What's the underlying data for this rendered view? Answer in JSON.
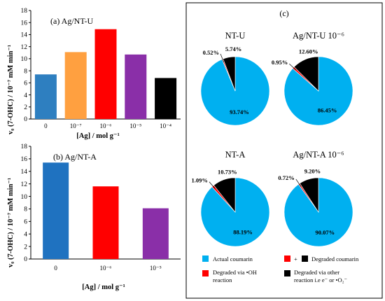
{
  "chart_data": [
    {
      "type": "bar",
      "panel_label": "(a) Ag/NT-U",
      "categories": [
        "0",
        "10⁻⁷",
        "10⁻⁶",
        "10⁻⁵",
        "10⁻⁴"
      ],
      "values": [
        7.4,
        11.1,
        14.9,
        10.7,
        6.8
      ],
      "colors": [
        "#2e7fc0",
        "#ffa040",
        "#ff0000",
        "#8a2fa8",
        "#000000"
      ],
      "xlabel": "[Ag] / mol g⁻¹",
      "ylabel": "v₀ (7-OHC) / 10⁻⁷ mM min⁻¹",
      "ylim": [
        0,
        18
      ],
      "yticks": [
        0,
        2,
        4,
        6,
        8,
        10,
        12,
        14,
        16,
        18
      ],
      "grid": false
    },
    {
      "type": "bar",
      "panel_label": "(b) Ag/NT-A",
      "categories": [
        "0",
        "10⁻⁶",
        "10⁻⁵"
      ],
      "values": [
        15.4,
        11.6,
        8.1
      ],
      "colors": [
        "#1f72c0",
        "#ff0000",
        "#8a2fa8"
      ],
      "xlabel": "[Ag] / mol g⁻¹",
      "ylabel": "v₀ (7-OHC) / 10⁻⁷ mM min⁻¹",
      "ylim": [
        0,
        18
      ],
      "yticks": [
        0,
        2,
        4,
        6,
        8,
        10,
        12,
        14,
        16,
        18
      ],
      "grid": false
    },
    {
      "type": "pie",
      "panel_label": "(c)",
      "slice_labels": [
        "Actual coumarin",
        "Degraded via •OH reaction",
        "Degraded via other reaction i.e e⁻ or •O₂⁻"
      ],
      "slice_colors": [
        "#00b0f0",
        "#ff0000",
        "#000000"
      ],
      "pies": [
        {
          "title": "NT-U",
          "values": [
            93.74,
            0.52,
            5.74
          ],
          "labels": [
            "93.74%",
            "0.52%",
            "5.74%"
          ]
        },
        {
          "title": "Ag/NT-U 10⁻⁶",
          "values": [
            86.45,
            0.95,
            12.6
          ],
          "labels": [
            "86.45%",
            "0.95%",
            "12.60%"
          ]
        },
        {
          "title": "NT-A",
          "values": [
            88.19,
            1.09,
            10.73
          ],
          "labels": [
            "88.19%",
            "1.09%",
            "10.73%"
          ]
        },
        {
          "title": "Ag/NT-A 10⁻⁶",
          "values": [
            90.07,
            0.72,
            9.2
          ],
          "labels": [
            "90.07%",
            "0.72%",
            "9.20%"
          ]
        }
      ],
      "legend": {
        "actual": "Actual coumarin",
        "plus": "+",
        "degraded": "Degraded coumarin",
        "oh": "Degraded via •OH reaction",
        "oh_line1": "Degraded via •OH",
        "oh_line2": "reaction",
        "other_line1": "Degraded via other",
        "other_line2": "reaction i.e e⁻ or •O₂⁻"
      }
    }
  ]
}
